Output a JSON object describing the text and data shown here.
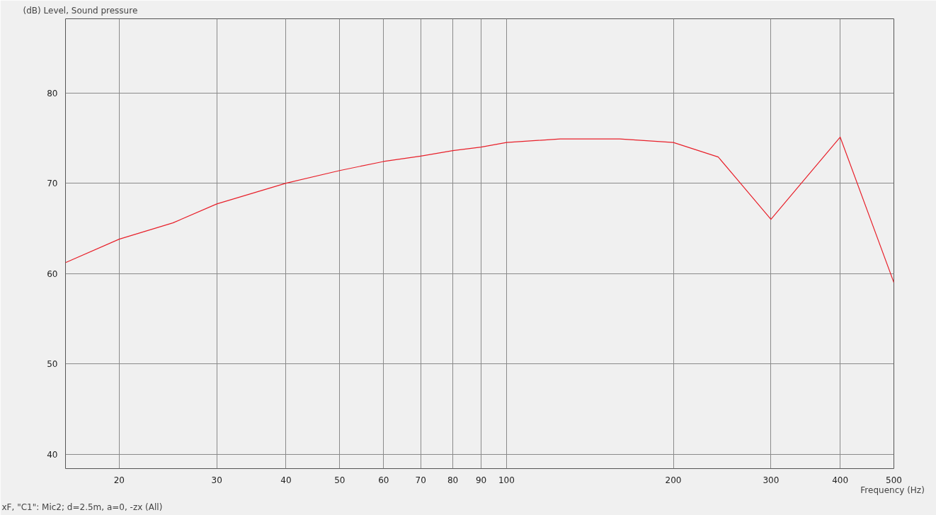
{
  "chart_data": {
    "type": "line",
    "ylabel": "(dB)  Level, Sound pressure",
    "xlabel": "Frequency  (Hz)",
    "annotations": [
      "xF, \"C1\": Mic2; d=2.5m, a=0, -zx  (All)"
    ],
    "x": [
      16,
      20,
      25,
      30,
      40,
      50,
      60,
      70,
      80,
      90,
      100,
      125,
      160,
      200,
      241,
      300,
      400,
      500
    ],
    "series": [
      {
        "color": "#e8202a",
        "values": [
          61.2,
          63.8,
          65.6,
          67.7,
          70.0,
          71.4,
          72.4,
          73.0,
          73.6,
          74.0,
          74.5,
          74.9,
          74.9,
          74.5,
          72.9,
          66.0,
          75.1,
          59.0
        ]
      }
    ],
    "log": "x",
    "xlim": [
      16,
      500
    ],
    "ylim": [
      38.4,
      88.2
    ],
    "xticks": [
      20,
      30,
      40,
      50,
      60,
      70,
      80,
      90,
      100,
      200,
      300,
      400,
      500
    ],
    "yticks": [
      40,
      50,
      60,
      70,
      80
    ],
    "grid": true,
    "marker": "none",
    "line_style": "solid"
  }
}
